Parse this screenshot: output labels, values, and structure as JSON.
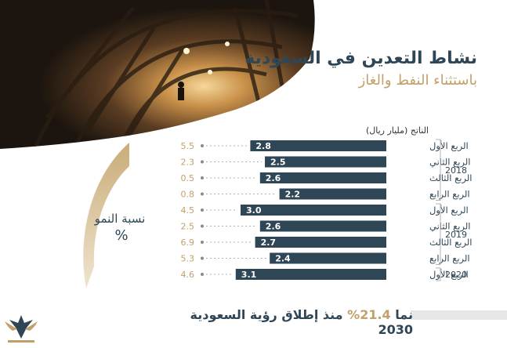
{
  "header": {
    "title": "نشاط التعدين في السعودية",
    "subtitle": "باستثناء النفط والغاز"
  },
  "gauge": {
    "label": "نسبة النمو",
    "percent_sign": "%"
  },
  "footer": {
    "prefix": "نما",
    "highlight": "21.4%",
    "suffix": "منذ إطلاق رؤية السعودية 2030"
  },
  "colors": {
    "bar": "#2f4656",
    "accent": "#c2a06a",
    "text": "#2f4656"
  },
  "chart_data": {
    "type": "bar",
    "orientation": "horizontal",
    "unit_label": "الناتج (مليار ريال)",
    "years": [
      "2018",
      "2019",
      "2020"
    ],
    "rows": [
      {
        "year": "2018",
        "quarter": "الربع الأول",
        "output": 2.8,
        "growth": "5.5"
      },
      {
        "year": "2018",
        "quarter": "الربع الثاني",
        "output": 2.5,
        "growth": "2.3"
      },
      {
        "year": "2018",
        "quarter": "الربع الثالث",
        "output": 2.6,
        "growth": "0.5"
      },
      {
        "year": "2018",
        "quarter": "الربع الرابع",
        "output": 2.2,
        "growth": "0.8"
      },
      {
        "year": "2019",
        "quarter": "الربع الأول",
        "output": 3.0,
        "growth": "4.5"
      },
      {
        "year": "2019",
        "quarter": "الربع الثاني",
        "output": 2.6,
        "growth": "2.5"
      },
      {
        "year": "2019",
        "quarter": "الربع الثالث",
        "output": 2.7,
        "growth": "6.9"
      },
      {
        "year": "2019",
        "quarter": "الربع الرابع",
        "output": 2.4,
        "growth": "5.3"
      },
      {
        "year": "2020",
        "quarter": "الربع الأول",
        "output": 3.1,
        "growth": "4.6"
      }
    ]
  }
}
